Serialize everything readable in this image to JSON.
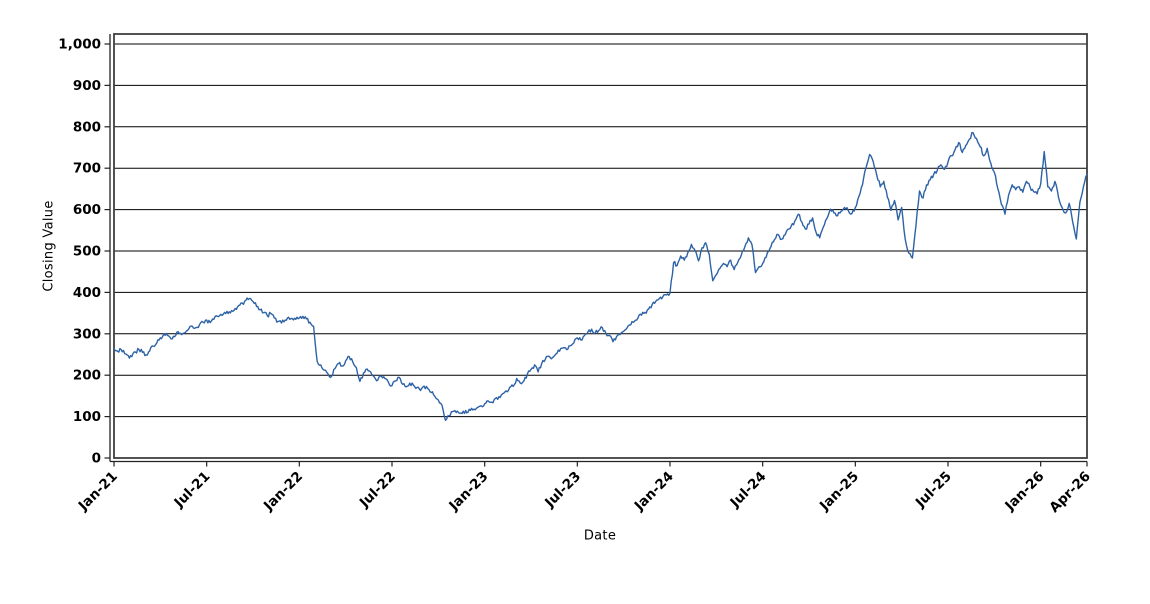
{
  "chart_data": {
    "type": "line",
    "title": "",
    "xlabel": "Date",
    "ylabel": "Closing Value",
    "legend": "none",
    "grid": "horizontal-only",
    "x_axis": {
      "start_label": "Jan-21",
      "end_label": "Apr-26",
      "total_months": 63,
      "tick_labels": [
        "Jan-21",
        "Jul-21",
        "Jan-22",
        "Jul-22",
        "Jan-23",
        "Jul-23",
        "Jan-24",
        "Jul-24",
        "Jan-25",
        "Jul-25",
        "Jan-26",
        "Apr-26"
      ],
      "tick_month_offsets": [
        0,
        6,
        12,
        18,
        24,
        30,
        36,
        42,
        48,
        54,
        60,
        63
      ]
    },
    "y_axis": {
      "min": 0,
      "max": 1000,
      "tick_values": [
        0,
        100,
        200,
        300,
        400,
        500,
        600,
        700,
        800,
        900,
        1000
      ],
      "tick_labels": [
        "0",
        "100",
        "200",
        "300",
        "400",
        "500",
        "600",
        "700",
        "800",
        "900",
        "1,000"
      ]
    },
    "series": [
      {
        "name": "Closing Value",
        "sampling": "weekly",
        "start": "Jan-21",
        "end": "Apr-26",
        "color": "#2d62a6",
        "values": [
          265,
          258,
          262,
          252,
          247,
          245,
          256,
          262,
          255,
          249,
          258,
          270,
          278,
          290,
          300,
          296,
          288,
          293,
          305,
          298,
          303,
          312,
          318,
          315,
          322,
          328,
          333,
          327,
          335,
          342,
          347,
          352,
          349,
          356,
          361,
          368,
          374,
          381,
          385,
          378,
          366,
          358,
          351,
          344,
          349,
          338,
          330,
          326,
          333,
          340,
          337,
          335,
          338,
          342,
          336,
          328,
          318,
          233,
          225,
          212,
          204,
          197,
          216,
          228,
          222,
          235,
          245,
          232,
          218,
          185,
          205,
          215,
          208,
          196,
          188,
          198,
          192,
          183,
          175,
          186,
          195,
          178,
          172,
          181,
          176,
          170,
          163,
          174,
          168,
          158,
          149,
          140,
          128,
          91,
          102,
          112,
          110,
          108,
          113,
          109,
          115,
          118,
          122,
          126,
          131,
          138,
          135,
          144,
          148,
          155,
          162,
          170,
          173,
          192,
          181,
          186,
          203,
          214,
          225,
          208,
          228,
          238,
          246,
          242,
          251,
          258,
          266,
          262,
          271,
          278,
          290,
          285,
          296,
          305,
          311,
          302,
          308,
          315,
          302,
          296,
          281,
          293,
          298,
          306,
          315,
          322,
          330,
          338,
          345,
          352,
          360,
          371,
          378,
          385,
          390,
          394,
          398,
          472,
          465,
          488,
          478,
          496,
          516,
          502,
          476,
          508,
          520,
          493,
          428,
          443,
          458,
          470,
          462,
          478,
          455,
          472,
          490,
          510,
          532,
          515,
          448,
          462,
          470,
          485,
          505,
          522,
          540,
          528,
          538,
          552,
          560,
          572,
          589,
          570,
          553,
          565,
          580,
          545,
          532,
          558,
          578,
          601,
          592,
          585,
          596,
          605,
          598,
          590,
          605,
          632,
          660,
          701,
          733,
          716,
          684,
          655,
          668,
          630,
          598,
          622,
          575,
          605,
          529,
          495,
          483,
          560,
          645,
          628,
          660,
          672,
          685,
          695,
          708,
          697,
          715,
          730,
          745,
          762,
          738,
          755,
          770,
          786,
          772,
          752,
          730,
          748,
          712,
          690,
          650,
          612,
          589,
          635,
          660,
          648,
          655,
          642,
          668,
          655,
          644,
          638,
          662,
          740,
          655,
          645,
          668,
          630,
          605,
          592,
          615,
          570,
          529,
          618,
          655,
          685
        ]
      }
    ],
    "style": {
      "line_width": 1.4,
      "grid_color": "#000000",
      "border_color": "#3f3f3f",
      "axis_color": "#222222",
      "background": "#ffffff",
      "noise_amplitude": 5
    }
  }
}
